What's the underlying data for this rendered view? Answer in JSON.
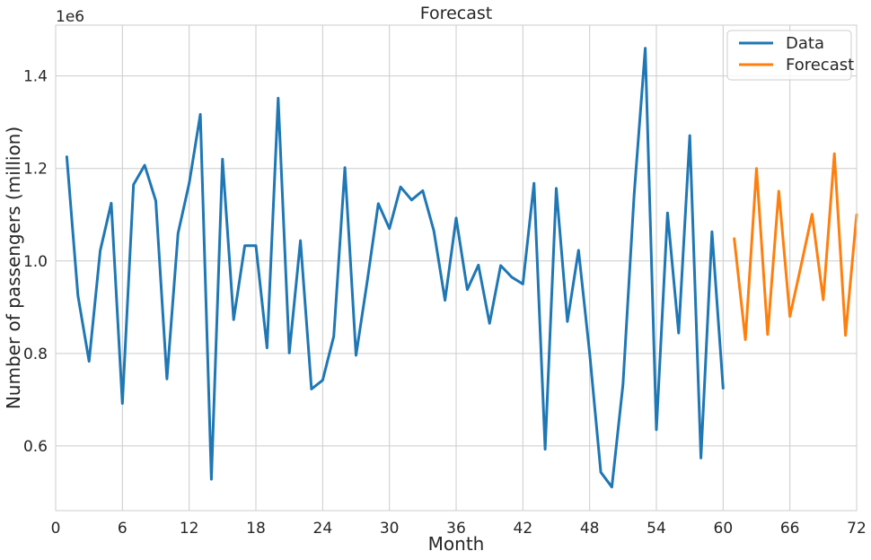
{
  "chart_data": {
    "type": "line",
    "title": "Forecast",
    "xlabel": "Month",
    "ylabel": "Number of passengers (million)",
    "y_offset_text": "1e6",
    "xlim": [
      0,
      72
    ],
    "ylim": [
      460000,
      1510000
    ],
    "x_ticks": [
      0,
      6,
      12,
      18,
      24,
      30,
      36,
      42,
      48,
      54,
      60,
      66,
      72
    ],
    "y_ticks": [
      600000,
      800000,
      1000000,
      1200000,
      1400000
    ],
    "y_tick_labels": [
      "0.6",
      "0.8",
      "1.0",
      "1.2",
      "1.4"
    ],
    "grid": true,
    "legend_position": "top-right",
    "series": [
      {
        "name": "Data",
        "color": "#1f77b4",
        "x": [
          1,
          2,
          3,
          4,
          5,
          6,
          7,
          8,
          9,
          10,
          11,
          12,
          13,
          14,
          15,
          16,
          17,
          18,
          19,
          20,
          21,
          22,
          23,
          24,
          25,
          26,
          27,
          28,
          29,
          30,
          31,
          32,
          33,
          34,
          35,
          36,
          37,
          38,
          39,
          40,
          41,
          42,
          43,
          44,
          45,
          46,
          47,
          48,
          49,
          50,
          51,
          52,
          53,
          54,
          55,
          56,
          57,
          58,
          59,
          60
        ],
        "y": [
          1225000,
          925000,
          783000,
          1022000,
          1125000,
          692000,
          1165000,
          1207000,
          1130000,
          745000,
          1060000,
          1168000,
          1317000,
          528000,
          1220000,
          873000,
          1033000,
          1033000,
          812000,
          1352000,
          801000,
          1044000,
          723000,
          742000,
          837000,
          1202000,
          796000,
          955000,
          1124000,
          1070000,
          1160000,
          1132000,
          1152000,
          1065000,
          915000,
          1093000,
          938000,
          991000,
          865000,
          990000,
          965000,
          950000,
          1168000,
          593000,
          1157000,
          869000,
          1023000,
          800000,
          543000,
          511000,
          733000,
          1143000,
          1460000,
          635000,
          1104000,
          844000,
          1271000,
          574000,
          1063000,
          725000
        ]
      },
      {
        "name": "Forecast",
        "color": "#ff7f0e",
        "x": [
          61,
          62,
          63,
          64,
          65,
          66,
          67,
          68,
          69,
          70,
          71,
          72
        ],
        "y": [
          1048000,
          830000,
          1200000,
          841000,
          1151000,
          880000,
          990000,
          1101000,
          916000,
          1232000,
          839000,
          1100000
        ]
      }
    ]
  }
}
